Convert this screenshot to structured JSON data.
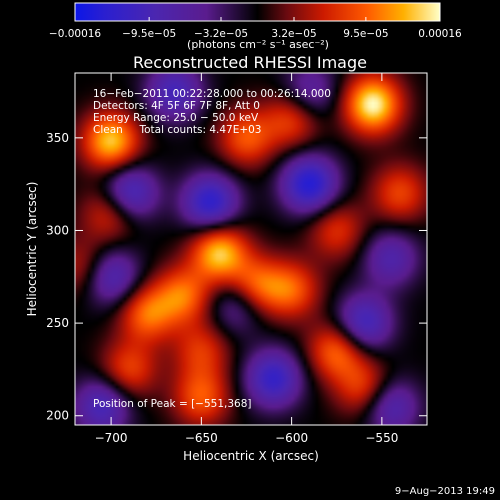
{
  "chart_data": {
    "type": "heatmap",
    "title": "Reconstructed RHESSI Image",
    "xlabel": "Heliocentric X (arcsec)",
    "ylabel": "Heliocentric Y (arcsec)",
    "xlim": [
      -720,
      -525
    ],
    "ylim": [
      195,
      385
    ],
    "x_ticks": [
      -700,
      -650,
      -600,
      -550
    ],
    "x_tick_labels": [
      "−700",
      "−650",
      "−600",
      "−550"
    ],
    "y_ticks": [
      200,
      250,
      300,
      350
    ],
    "y_tick_labels": [
      "200",
      "250",
      "300",
      "350"
    ],
    "colorbar": {
      "range": [
        -0.00016,
        0.00016
      ],
      "tick_values": [
        -0.00016,
        -9.5e-05,
        -3.2e-05,
        3.2e-05,
        9.5e-05,
        0.00016
      ],
      "tick_labels": [
        "−0.00016",
        "−9.5e−05",
        "−3.2e−05",
        "3.2e−05",
        "9.5e−05",
        "0.00016"
      ],
      "unit_label": "(photons cm⁻² s⁻¹ asec⁻²)"
    },
    "info_lines": [
      "16−Feb−2011 00:22:28.000 to 00:26:14.000",
      "Detectors: 4F 5F 6F 7F 8F, Att 0",
      "Energy Range: 25.0 − 50.0 keV",
      "Clean     Total counts: 4.47E+03"
    ],
    "peak_label": "Position of Peak = [−551,368]",
    "peak_position": [
      -551,
      368
    ],
    "sources": [
      {
        "x": -555,
        "y": 368,
        "value": 0.00016
      },
      {
        "x": -700,
        "y": 348,
        "value": 0.00014
      },
      {
        "x": -640,
        "y": 288,
        "value": 0.00014
      },
      {
        "x": -620,
        "y": 270,
        "value": 0.0001
      },
      {
        "x": -680,
        "y": 255,
        "value": 0.0001
      },
      {
        "x": -660,
        "y": 265,
        "value": 0.0001
      },
      {
        "x": -575,
        "y": 235,
        "value": 0.0001
      },
      {
        "x": -600,
        "y": 268,
        "value": 9e-05
      },
      {
        "x": -700,
        "y": 310,
        "value": 8e-05
      },
      {
        "x": -625,
        "y": 350,
        "value": 9e-05
      },
      {
        "x": -600,
        "y": 360,
        "value": 8e-05
      },
      {
        "x": -690,
        "y": 225,
        "value": 8e-05
      },
      {
        "x": -650,
        "y": 210,
        "value": 9e-05
      },
      {
        "x": -560,
        "y": 215,
        "value": 8e-05
      },
      {
        "x": -540,
        "y": 320,
        "value": 8e-05
      },
      {
        "x": -575,
        "y": 300,
        "value": 7e-05
      },
      {
        "x": -715,
        "y": 280,
        "value": 6e-05
      },
      {
        "x": -650,
        "y": 235,
        "value": 7e-05
      },
      {
        "x": -690,
        "y": 320,
        "value": -0.00012
      },
      {
        "x": -645,
        "y": 315,
        "value": -0.00013
      },
      {
        "x": -590,
        "y": 325,
        "value": -0.00014
      },
      {
        "x": -560,
        "y": 250,
        "value": -0.00011
      },
      {
        "x": -610,
        "y": 220,
        "value": -0.00012
      },
      {
        "x": -700,
        "y": 275,
        "value": -0.0001
      },
      {
        "x": -665,
        "y": 375,
        "value": -0.0001
      },
      {
        "x": -705,
        "y": 205,
        "value": -0.0001
      },
      {
        "x": -630,
        "y": 260,
        "value": -7e-05
      },
      {
        "x": -545,
        "y": 285,
        "value": -8e-05
      },
      {
        "x": -590,
        "y": 375,
        "value": -7e-05
      },
      {
        "x": -545,
        "y": 205,
        "value": -9e-05
      }
    ]
  },
  "footer_timestamp": "9−Aug−2013 19:49"
}
